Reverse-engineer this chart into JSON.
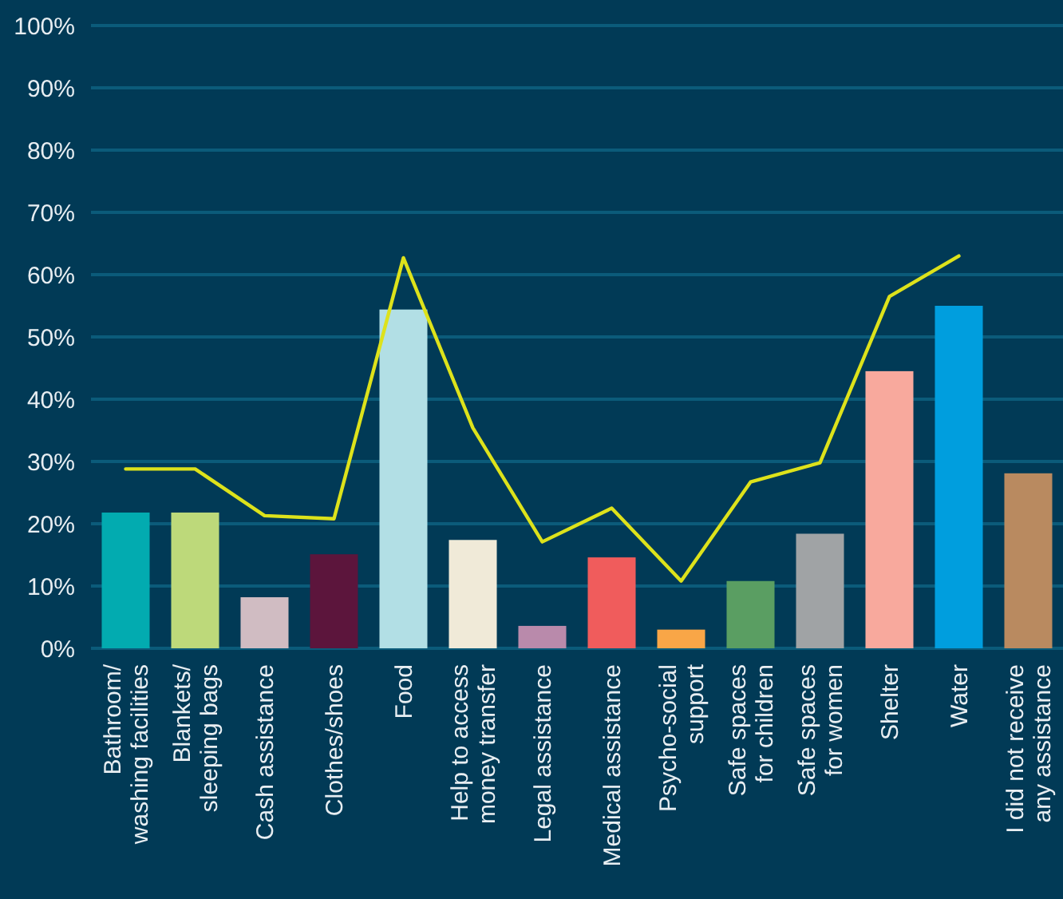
{
  "chart_data": {
    "type": "bar",
    "categories": [
      "Bathroom/\nwashing facilities",
      "Blankets/\nsleeping bags",
      "Cash assistance",
      "Clothes/shoes",
      "Food",
      "Help to access\nmoney transfer",
      "Legal assistance",
      "Medical assistance",
      "Psycho-social\nsupport",
      "Safe spaces\nfor children",
      "Safe spaces\nfor women",
      "Shelter",
      "Water",
      "I did not receive\nany assistance"
    ],
    "series": [
      {
        "colors": [
          "#02abb0",
          "#bdd97a",
          "#d0bcc2",
          "#5c153c",
          "#b2dfe5",
          "#f0ead8",
          "#b98aab",
          "#f05c5c",
          "#f9a647",
          "#5a9e62",
          "#a0a3a5",
          "#f8a99d",
          "#009ede",
          "#b98a60"
        ],
        "values": [
          21.8,
          21.8,
          8.2,
          15.1,
          54.4,
          17.4,
          3.6,
          14.6,
          3.0,
          10.8,
          18.4,
          44.5,
          55.0,
          28.1
        ]
      },
      {
        "type": "line",
        "color": "#dde21b",
        "values": [
          28.8,
          28.8,
          21.3,
          20.8,
          62.7,
          35.4,
          17.1,
          22.5,
          10.8,
          26.7,
          29.8,
          56.5,
          63.0,
          null
        ]
      }
    ],
    "ylim": [
      0,
      100
    ],
    "yticks": [
      {
        "value": 0,
        "label": "0%"
      },
      {
        "value": 10,
        "label": "10%"
      },
      {
        "value": 20,
        "label": "20%"
      },
      {
        "value": 30,
        "label": "30%"
      },
      {
        "value": 40,
        "label": "40%"
      },
      {
        "value": 50,
        "label": "50%"
      },
      {
        "value": 60,
        "label": "60%"
      },
      {
        "value": 70,
        "label": "70%"
      },
      {
        "value": 80,
        "label": "80%"
      },
      {
        "value": 90,
        "label": "90%"
      },
      {
        "value": 100,
        "label": "100%"
      }
    ],
    "grid": "y",
    "marker": "none",
    "line_style": "solid"
  }
}
